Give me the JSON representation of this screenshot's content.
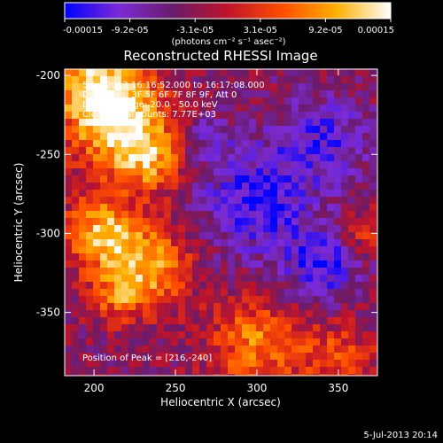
{
  "colorbar": {
    "tick_labels": [
      "-0.00015",
      "-9.2e-05",
      "-3.1e-05",
      "3.1e-05",
      "9.2e-05",
      "0.00015"
    ],
    "unit_label": "(photons cm⁻² s⁻¹ asec⁻²)",
    "colors": [
      "#0000ff",
      "#7b2bd6",
      "#6a1b6a",
      "#c0132a",
      "#ff4d00",
      "#ffb000",
      "#ffffff"
    ]
  },
  "chart_data": {
    "type": "heatmap",
    "title": "Reconstructed RHESSI Image",
    "xlabel": "Heliocentric X (arcsec)",
    "ylabel": "Heliocentric Y (arcsec)",
    "xlim": [
      182,
      374
    ],
    "ylim": [
      -390,
      -196
    ],
    "x_ticks": [
      200,
      250,
      300,
      350
    ],
    "y_ticks": [
      -200,
      -250,
      -300,
      -350
    ],
    "annotations": [
      "5-Jul-2013 16:16:52.000 to 16:17:08.000",
      "Detectors: 3F 5F 6F 7F 8F 9F, Att 0",
      "Energy Range: 20.0 - 50.0 keV",
      "Clean. Total counts: 7.77E+03"
    ],
    "peak_label": "Position of Peak = [216,-240]",
    "peak": [
      216,
      -240
    ],
    "clip_range": [
      -0.00015,
      0.00015
    ]
  },
  "footer": {
    "timestamp": "5-Jul-2013 20:14"
  }
}
